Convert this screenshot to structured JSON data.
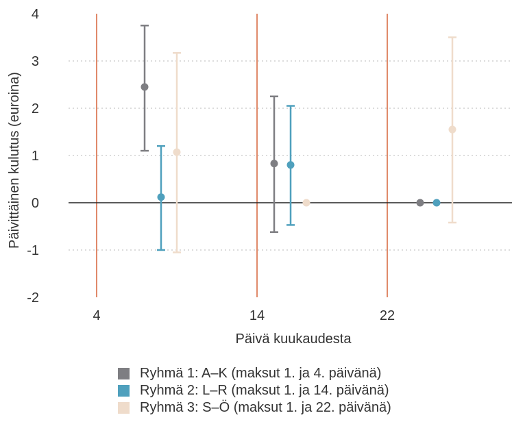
{
  "chart_data": {
    "type": "scatter",
    "subtype": "dot-with-error-bars",
    "xlabel": "Päivä kuukaudesta",
    "ylabel": "Päivittäinen kulutus (euroina)",
    "ylim": [
      -2,
      4
    ],
    "yticks": [
      "-2",
      "-1",
      "0",
      "1",
      "2",
      "3",
      "4"
    ],
    "xticks": [
      "4",
      "14",
      "22"
    ],
    "grid": "horizontal-dotted",
    "legend_placement": "bottom",
    "payday_lines_color": "#d2572b",
    "zero_line_color": "#222222",
    "series": [
      {
        "name": "Ryhmä 1: A–K (maksut 1. ja 4. päivänä)",
        "color": "#7e7e82",
        "points": [
          {
            "day": "4",
            "y": 2.45,
            "low": 1.1,
            "high": 3.75
          },
          {
            "day": "14",
            "y": 0.83,
            "low": -0.62,
            "high": 2.25
          },
          {
            "day": "22",
            "y": 0.0
          }
        ]
      },
      {
        "name": "Ryhmä 2: L–R (maksut 1. ja 14. päivänä)",
        "color": "#4fa0bd",
        "points": [
          {
            "day": "4",
            "y": 0.12,
            "low": -1.0,
            "high": 1.2
          },
          {
            "day": "14",
            "y": 0.8,
            "low": -0.47,
            "high": 2.05
          },
          {
            "day": "22",
            "y": 0.0
          }
        ]
      },
      {
        "name": "Ryhmä 3: S–Ö (maksut 1. ja 22. päivänä)",
        "color": "#efdccb",
        "points": [
          {
            "day": "4",
            "y": 1.07,
            "low": -1.05,
            "high": 3.17
          },
          {
            "day": "14",
            "y": 0.0
          },
          {
            "day": "22",
            "y": 1.55,
            "low": -0.42,
            "high": 3.5
          }
        ]
      }
    ]
  }
}
